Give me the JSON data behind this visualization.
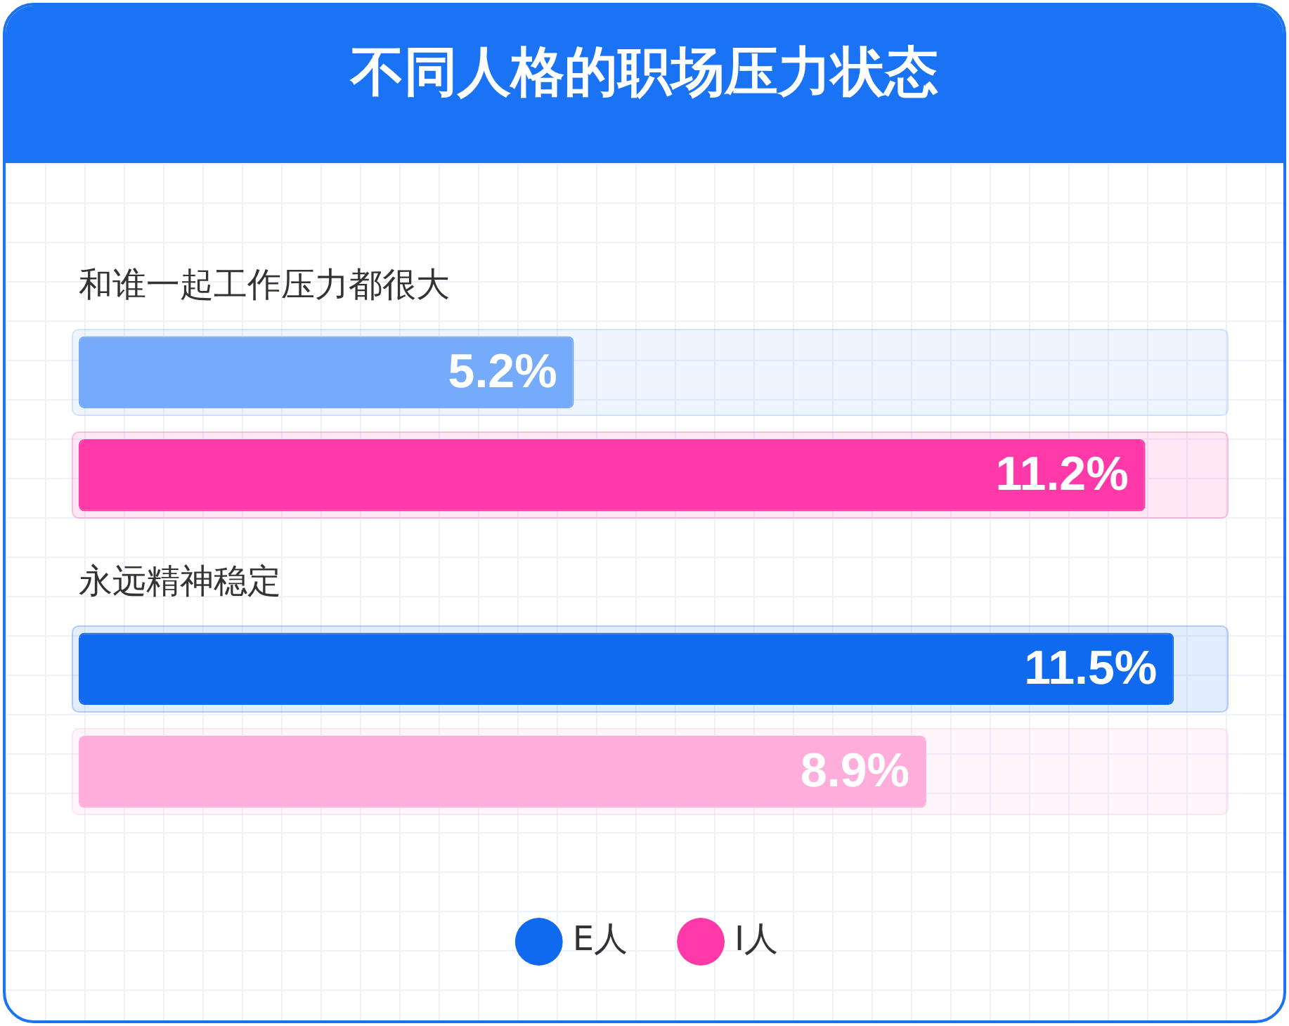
{
  "chart_data": {
    "type": "bar",
    "orientation": "horizontal",
    "title": "不同人格的职场压力状态",
    "categories": [
      "和谁一起工作压力都很大",
      "永远精神稳定"
    ],
    "series": [
      {
        "name": "E人",
        "color": "#0f6af0",
        "colors": [
          "#76aafa",
          "#0f6af0"
        ],
        "values": [
          5.2,
          11.5
        ],
        "value_labels": [
          "5.2%",
          "11.5%"
        ]
      },
      {
        "name": "I人",
        "color": "#ff3aa8",
        "colors": [
          "#ff3aa8",
          "#ffaedc"
        ],
        "values": [
          11.2,
          8.9
        ],
        "value_labels": [
          "11.2%",
          "8.9%"
        ]
      }
    ],
    "legend": "bottom"
  }
}
